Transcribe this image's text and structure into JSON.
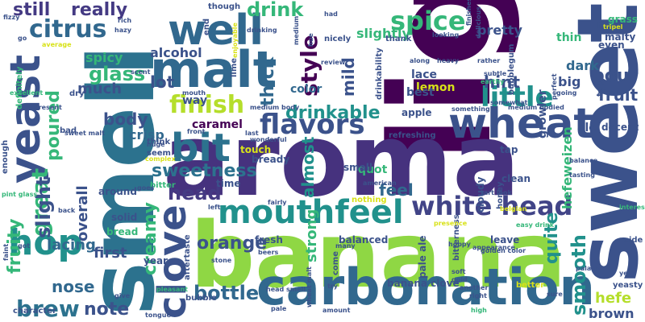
{
  "palette": {
    "dark_purple": "#440154",
    "indigo": "#3b528b",
    "blue": "#31688e",
    "teal": "#21918c",
    "green": "#35b779",
    "lime": "#90d743",
    "yellow": "#d8e219",
    "background": "#ffffff"
  },
  "words": [
    {
      "text": "light",
      "color": "#440154"
    },
    {
      "text": "aroma",
      "color": "#46327e"
    },
    {
      "text": "banana",
      "color": "#8fd744"
    },
    {
      "text": "smell",
      "color": "#2c728e"
    },
    {
      "text": "sweet",
      "color": "#3b528b"
    },
    {
      "text": "carbonation",
      "color": "#31688e"
    },
    {
      "text": "wheat",
      "color": "#3b528b"
    },
    {
      "text": "malt",
      "color": "#31688e"
    },
    {
      "text": "yeast",
      "color": "#3b528b"
    },
    {
      "text": "well",
      "color": "#31688e"
    },
    {
      "text": "mouthfeel",
      "color": "#21918c"
    },
    {
      "text": "hop",
      "color": "#21918c"
    },
    {
      "text": "bit",
      "color": "#2c728e"
    },
    {
      "text": "clove",
      "color": "#3b528b"
    },
    {
      "text": "white head",
      "color": "#414487"
    },
    {
      "text": "flavors",
      "color": "#3b528b"
    },
    {
      "text": "finish",
      "color": "#b5de2b"
    },
    {
      "text": "little",
      "color": "#21918c"
    },
    {
      "text": "spice",
      "color": "#35b779"
    },
    {
      "text": "citrus",
      "color": "#31688e"
    },
    {
      "text": "head",
      "color": "#443a83"
    },
    {
      "text": "brew",
      "color": "#2c728e"
    },
    {
      "text": "great",
      "color": "#35b779"
    },
    {
      "text": "style",
      "color": "#440154"
    },
    {
      "text": "drink",
      "color": "#35b779"
    },
    {
      "text": "smooth",
      "color": "#21918c"
    },
    {
      "text": "sweetness",
      "color": "#2c728e"
    },
    {
      "text": "orange",
      "color": "#3b528b"
    },
    {
      "text": "bottle",
      "color": "#31688e"
    },
    {
      "text": "thick",
      "color": "#31688e"
    },
    {
      "text": "drinkable",
      "color": "#21918c"
    },
    {
      "text": "still",
      "color": "#443a83"
    },
    {
      "text": "really",
      "color": "#443a83"
    },
    {
      "text": "glass",
      "color": "#35b779"
    },
    {
      "text": "pour",
      "color": "#3b528b"
    },
    {
      "text": "lot",
      "color": "#3b528b"
    },
    {
      "text": "fruity",
      "color": "#35b779"
    },
    {
      "text": "slight",
      "color": "#3b528b"
    },
    {
      "text": "poured",
      "color": "#35b779"
    },
    {
      "text": "note",
      "color": "#3b528b"
    },
    {
      "text": "nose",
      "color": "#31688e"
    },
    {
      "text": "lacing",
      "color": "#31688e"
    },
    {
      "text": "overall",
      "color": "#3b528b"
    },
    {
      "text": "creamy",
      "color": "#35b779"
    },
    {
      "text": "first",
      "color": "#3b528b"
    },
    {
      "text": "quite",
      "color": "#21918c"
    },
    {
      "text": "fruit",
      "color": "#3b528b"
    },
    {
      "text": "hint",
      "color": "#3b528b"
    },
    {
      "text": "much",
      "color": "#3b528b"
    },
    {
      "text": "body",
      "color": "#3b528b"
    },
    {
      "text": "spicy",
      "color": "#35b779"
    },
    {
      "text": "alcohol",
      "color": "#3b528b"
    },
    {
      "text": "almost",
      "color": "#21918c"
    },
    {
      "text": "mild",
      "color": "#3b528b"
    },
    {
      "text": "feel",
      "color": "#31688e"
    },
    {
      "text": "strong",
      "color": "#35b779"
    },
    {
      "text": "crisp",
      "color": "#31688e"
    },
    {
      "text": "caramel",
      "color": "#440154"
    },
    {
      "text": "hefeweizen",
      "color": "#35b779"
    },
    {
      "text": "hefe",
      "color": "#b5de2b"
    },
    {
      "text": "brown",
      "color": "#3b528b"
    },
    {
      "text": "pretty",
      "color": "#3b528b"
    },
    {
      "text": "slightly",
      "color": "#35b779"
    },
    {
      "text": "way",
      "color": "#3b528b"
    },
    {
      "text": "thin",
      "color": "#35b779"
    },
    {
      "text": "make",
      "color": "#3b528b"
    },
    {
      "text": "dark",
      "color": "#31688e"
    },
    {
      "text": "big",
      "color": "#3b528b"
    },
    {
      "text": "lemon",
      "color": "#d8e219"
    },
    {
      "text": "lace",
      "color": "#3b528b"
    },
    {
      "text": "color",
      "color": "#31688e"
    },
    {
      "text": "best",
      "color": "#3b528b"
    },
    {
      "text": "ale",
      "color": "#3b528b"
    },
    {
      "text": "decent",
      "color": "#3b528b"
    },
    {
      "text": "growler",
      "color": "#3b528b"
    },
    {
      "text": "grass",
      "color": "#35b779"
    },
    {
      "text": "quot",
      "color": "#35b779"
    },
    {
      "text": "malty",
      "color": "#3b528b"
    },
    {
      "text": "even",
      "color": "#3b528b"
    },
    {
      "text": "bubblegum",
      "color": "#3b528b"
    },
    {
      "text": "drinkability",
      "color": "#3b528b"
    },
    {
      "text": "apple",
      "color": "#3b528b"
    },
    {
      "text": "refreshing",
      "color": "#3b528b"
    },
    {
      "text": "banana clove",
      "color": "#3b528b"
    },
    {
      "text": "pale ale",
      "color": "#3b528b"
    },
    {
      "text": "balanced",
      "color": "#3b528b"
    },
    {
      "text": "leave",
      "color": "#3b528b"
    },
    {
      "text": "fresh",
      "color": "#3b528b"
    },
    {
      "text": "come",
      "color": "#3b528b"
    },
    {
      "text": "bubble",
      "color": "#3b528b"
    },
    {
      "text": "aftertaste",
      "color": "#3b528b"
    },
    {
      "text": "year",
      "color": "#3b528b"
    },
    {
      "text": "bread",
      "color": "#35b779"
    },
    {
      "text": "solid",
      "color": "#3b528b"
    },
    {
      "text": "around",
      "color": "#3b528b"
    },
    {
      "text": "time",
      "color": "#3b528b"
    },
    {
      "text": "bready",
      "color": "#3b528b"
    },
    {
      "text": "touch",
      "color": "#d8e219"
    },
    {
      "text": "small",
      "color": "#3b528b"
    },
    {
      "text": "cloudy",
      "color": "#3b528b"
    },
    {
      "text": "honey",
      "color": "#3b528b"
    },
    {
      "text": "clean",
      "color": "#3b528b"
    },
    {
      "text": "tap",
      "color": "#3b528b"
    },
    {
      "text": "yeasty",
      "color": "#3b528b"
    },
    {
      "text": "better",
      "color": "#d8e219"
    },
    {
      "text": "character",
      "color": "#3b528b"
    },
    {
      "text": "enough",
      "color": "#3b528b"
    },
    {
      "text": "definitely",
      "color": "#35b779"
    },
    {
      "text": "bad",
      "color": "#3b528b"
    },
    {
      "text": "think",
      "color": "#3b528b"
    },
    {
      "text": "seem",
      "color": "#3b528b"
    },
    {
      "text": "nicely",
      "color": "#3b528b"
    },
    {
      "text": "dry",
      "color": "#3b528b"
    },
    {
      "text": "though",
      "color": "#3b528b"
    },
    {
      "text": "end",
      "color": "#3b528b"
    },
    {
      "text": "lime",
      "color": "#3b528b"
    },
    {
      "text": "thank",
      "color": "#3b528b"
    },
    {
      "text": "bitterness",
      "color": "#3b528b"
    },
    {
      "text": "nothing",
      "color": "#d8e219"
    },
    {
      "text": "bitter",
      "color": "#35b779"
    },
    {
      "text": "medium body",
      "color": "#3b528b"
    },
    {
      "text": "sweet malt",
      "color": "#3b528b"
    },
    {
      "text": "medium bodied",
      "color": "#3b528b"
    },
    {
      "text": "pint glass",
      "color": "#35b779"
    },
    {
      "text": "head smell",
      "color": "#3b528b"
    },
    {
      "text": "wheat malt",
      "color": "#3b528b"
    },
    {
      "text": "golden color",
      "color": "#3b528b"
    },
    {
      "text": "easy drink",
      "color": "#35b779"
    },
    {
      "text": "tart look",
      "color": "#3b528b"
    },
    {
      "text": "american",
      "color": "#3b528b"
    },
    {
      "text": "belgian",
      "color": "#d8e219"
    },
    {
      "text": "appearance",
      "color": "#3b528b"
    },
    {
      "text": "interesting",
      "color": "#35b779"
    },
    {
      "text": "tasting",
      "color": "#3b528b"
    },
    {
      "text": "balance",
      "color": "#3b528b"
    },
    {
      "text": "palate",
      "color": "#3b528b"
    },
    {
      "text": "side",
      "color": "#3b528b"
    },
    {
      "text": "sure",
      "color": "#3b528b"
    },
    {
      "text": "high",
      "color": "#35b779"
    },
    {
      "text": "soft",
      "color": "#3b528b"
    },
    {
      "text": "gold",
      "color": "#3b528b"
    },
    {
      "text": "hoppy",
      "color": "#3b528b"
    },
    {
      "text": "another",
      "color": "#3b528b"
    },
    {
      "text": "amount",
      "color": "#3b528b"
    },
    {
      "text": "many",
      "color": "#3b528b"
    },
    {
      "text": "beers",
      "color": "#3b528b"
    },
    {
      "text": "try",
      "color": "#3b528b"
    },
    {
      "text": "stone",
      "color": "#3b528b"
    },
    {
      "text": "pale",
      "color": "#3b528b"
    },
    {
      "text": "tongue",
      "color": "#3b528b"
    },
    {
      "text": "pleasant",
      "color": "#35b779"
    },
    {
      "text": "give",
      "color": "#3b528b"
    },
    {
      "text": "faint",
      "color": "#3b528b"
    },
    {
      "text": "got",
      "color": "#3b528b"
    },
    {
      "text": "back",
      "color": "#3b528b"
    },
    {
      "text": "goes",
      "color": "#3b528b"
    },
    {
      "text": "left",
      "color": "#3b528b"
    },
    {
      "text": "fairly",
      "color": "#3b528b"
    },
    {
      "text": "presence",
      "color": "#d8e219"
    },
    {
      "text": "wonderful",
      "color": "#3b528b"
    },
    {
      "text": "last",
      "color": "#3b528b"
    },
    {
      "text": "front",
      "color": "#3b528b"
    },
    {
      "text": "huge",
      "color": "#3b528b"
    },
    {
      "text": "complex",
      "color": "#d8e219"
    },
    {
      "text": "scent",
      "color": "#3b528b"
    },
    {
      "text": "mouth",
      "color": "#3b528b"
    },
    {
      "text": "present",
      "color": "#3b528b"
    },
    {
      "text": "excellent",
      "color": "#35b779"
    },
    {
      "text": "average",
      "color": "#d8e219"
    },
    {
      "text": "hazy",
      "color": "#3b528b"
    },
    {
      "text": "rich",
      "color": "#3b528b"
    },
    {
      "text": "fizzy",
      "color": "#3b528b"
    },
    {
      "text": "go",
      "color": "#3b528b"
    },
    {
      "text": "drinking",
      "color": "#3b528b"
    },
    {
      "text": "enjoyable",
      "color": "#d8e219"
    },
    {
      "text": "medium",
      "color": "#3b528b"
    },
    {
      "text": "hue",
      "color": "#3b528b"
    },
    {
      "text": "had",
      "color": "#3b528b"
    },
    {
      "text": "finishes",
      "color": "#3b528b"
    },
    {
      "text": "delicious",
      "color": "#3b528b"
    },
    {
      "text": "looking",
      "color": "#3b528b"
    },
    {
      "text": "review",
      "color": "#3b528b"
    },
    {
      "text": "along",
      "color": "#3b528b"
    },
    {
      "text": "heavy",
      "color": "#3b528b"
    },
    {
      "text": "rather",
      "color": "#3b528b"
    },
    {
      "text": "subtle",
      "color": "#3b528b"
    },
    {
      "text": "earthy",
      "color": "#35b779"
    },
    {
      "text": "something",
      "color": "#3b528b"
    },
    {
      "text": "somewhat",
      "color": "#3b528b"
    },
    {
      "text": "perfect",
      "color": "#3b528b"
    },
    {
      "text": "going",
      "color": "#3b528b"
    },
    {
      "text": "top",
      "color": "#3b528b"
    },
    {
      "text": "tripel",
      "color": "#d8e219"
    },
    {
      "text": "yet",
      "color": "#3b528b"
    },
    {
      "text": "right",
      "color": "#3b528b"
    }
  ]
}
